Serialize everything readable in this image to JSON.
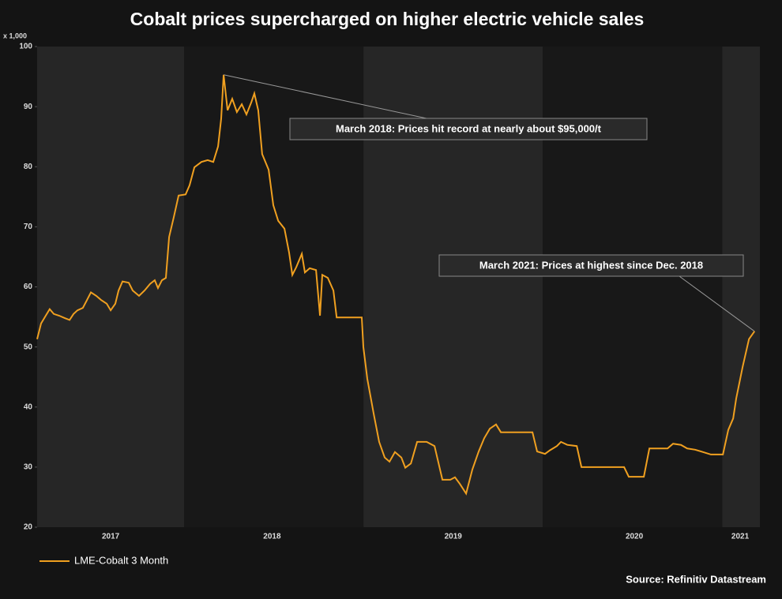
{
  "chart_data": {
    "type": "line",
    "title": "Cobalt prices supercharged on higher electric vehicle sales",
    "y_label": "x 1,000",
    "source": "Source: Refinitiv Datastream",
    "annotations": [
      "March 2018: Prices hit record at nearly about $95,000/t",
      "March 2021: Prices at highest since Dec. 2018"
    ],
    "xlim": [
      2017.18,
      2021.21
    ],
    "xticks": [
      {
        "value": 2017.59,
        "label": "2017"
      },
      {
        "value": 2018.49,
        "label": "2018"
      },
      {
        "value": 2019.5,
        "label": "2019"
      },
      {
        "value": 2020.51,
        "label": "2020"
      },
      {
        "value": 2021.1,
        "label": "2021"
      }
    ],
    "ylim": [
      20,
      100
    ],
    "yticks": [
      20,
      30,
      40,
      50,
      60,
      70,
      80,
      90,
      100
    ],
    "x": [
      2017.18,
      2017.202,
      2017.228,
      2017.25,
      2017.273,
      2017.303,
      2017.334,
      2017.361,
      2017.383,
      2017.405,
      2017.435,
      2017.458,
      2017.48,
      2017.51,
      2017.537,
      2017.568,
      2017.59,
      2017.616,
      2017.634,
      2017.656,
      2017.691,
      2017.713,
      2017.748,
      2017.779,
      2017.81,
      2017.836,
      2017.854,
      2017.876,
      2017.898,
      2017.916,
      2017.942,
      2017.969,
      2018.008,
      2018.03,
      2018.057,
      2018.096,
      2018.131,
      2018.162,
      2018.189,
      2018.206,
      2018.22,
      2018.242,
      2018.268,
      2018.294,
      2018.321,
      2018.347,
      2018.374,
      2018.391,
      2018.413,
      2018.435,
      2018.471,
      2018.497,
      2018.524,
      2018.559,
      2018.585,
      2018.603,
      2018.625,
      2018.656,
      2018.673,
      2018.7,
      2018.735,
      2018.757,
      2018.77,
      2018.801,
      2018.832,
      2018.85,
      2018.911,
      2018.99,
      2018.999,
      2019.021,
      2019.057,
      2019.087,
      2019.118,
      2019.145,
      2019.175,
      2019.211,
      2019.233,
      2019.264,
      2019.299,
      2019.352,
      2019.396,
      2019.44,
      2019.484,
      2019.51,
      2019.537,
      2019.572,
      2019.607,
      2019.642,
      2019.673,
      2019.704,
      2019.739,
      2019.766,
      2019.814,
      2019.858,
      2019.942,
      2019.968,
      2020.012,
      2020.039,
      2020.078,
      2020.101,
      2020.136,
      2020.189,
      2020.215,
      2020.321,
      2020.453,
      2020.479,
      2020.563,
      2020.594,
      2020.651,
      2020.695,
      2020.726,
      2020.77,
      2020.805,
      2020.849,
      2020.893,
      2020.937,
      2021.004,
      2021.034,
      2021.061,
      2021.078,
      2021.114,
      2021.149,
      2021.18
    ],
    "series": [
      {
        "name": "LME-Cobalt 3 Month",
        "color": "#f0a020",
        "values": [
          51.3,
          53.9,
          55.2,
          56.3,
          55.5,
          55.2,
          54.8,
          54.5,
          55.5,
          56.1,
          56.5,
          57.8,
          59.1,
          58.5,
          57.8,
          57.2,
          56.1,
          57.2,
          59.4,
          60.9,
          60.7,
          59.4,
          58.5,
          59.4,
          60.5,
          61.1,
          59.8,
          61.1,
          61.5,
          68.3,
          71.6,
          75.2,
          75.4,
          76.9,
          79.9,
          80.8,
          81.1,
          80.8,
          83.4,
          88.0,
          95.3,
          89.4,
          91.3,
          89.1,
          90.4,
          88.7,
          90.7,
          92.2,
          89.4,
          82.1,
          79.5,
          73.6,
          71.0,
          69.7,
          65.7,
          62.0,
          63.3,
          65.5,
          62.4,
          63.1,
          62.8,
          55.2,
          62.0,
          61.5,
          59.4,
          54.9,
          54.9,
          54.9,
          50.0,
          44.7,
          38.8,
          34.2,
          31.6,
          30.9,
          32.5,
          31.6,
          29.9,
          30.6,
          34.2,
          34.2,
          33.5,
          27.9,
          27.9,
          28.3,
          27.2,
          25.6,
          29.6,
          32.6,
          34.8,
          36.4,
          37.1,
          35.8,
          35.8,
          35.8,
          35.8,
          32.6,
          32.2,
          32.8,
          33.5,
          34.2,
          33.7,
          33.5,
          30.0,
          30.0,
          30.0,
          28.4,
          28.4,
          33.1,
          33.1,
          33.1,
          33.9,
          33.7,
          33.1,
          32.9,
          32.5,
          32.1,
          32.1,
          36.2,
          38.1,
          41.4,
          46.7,
          51.3,
          52.6
        ]
      }
    ]
  }
}
